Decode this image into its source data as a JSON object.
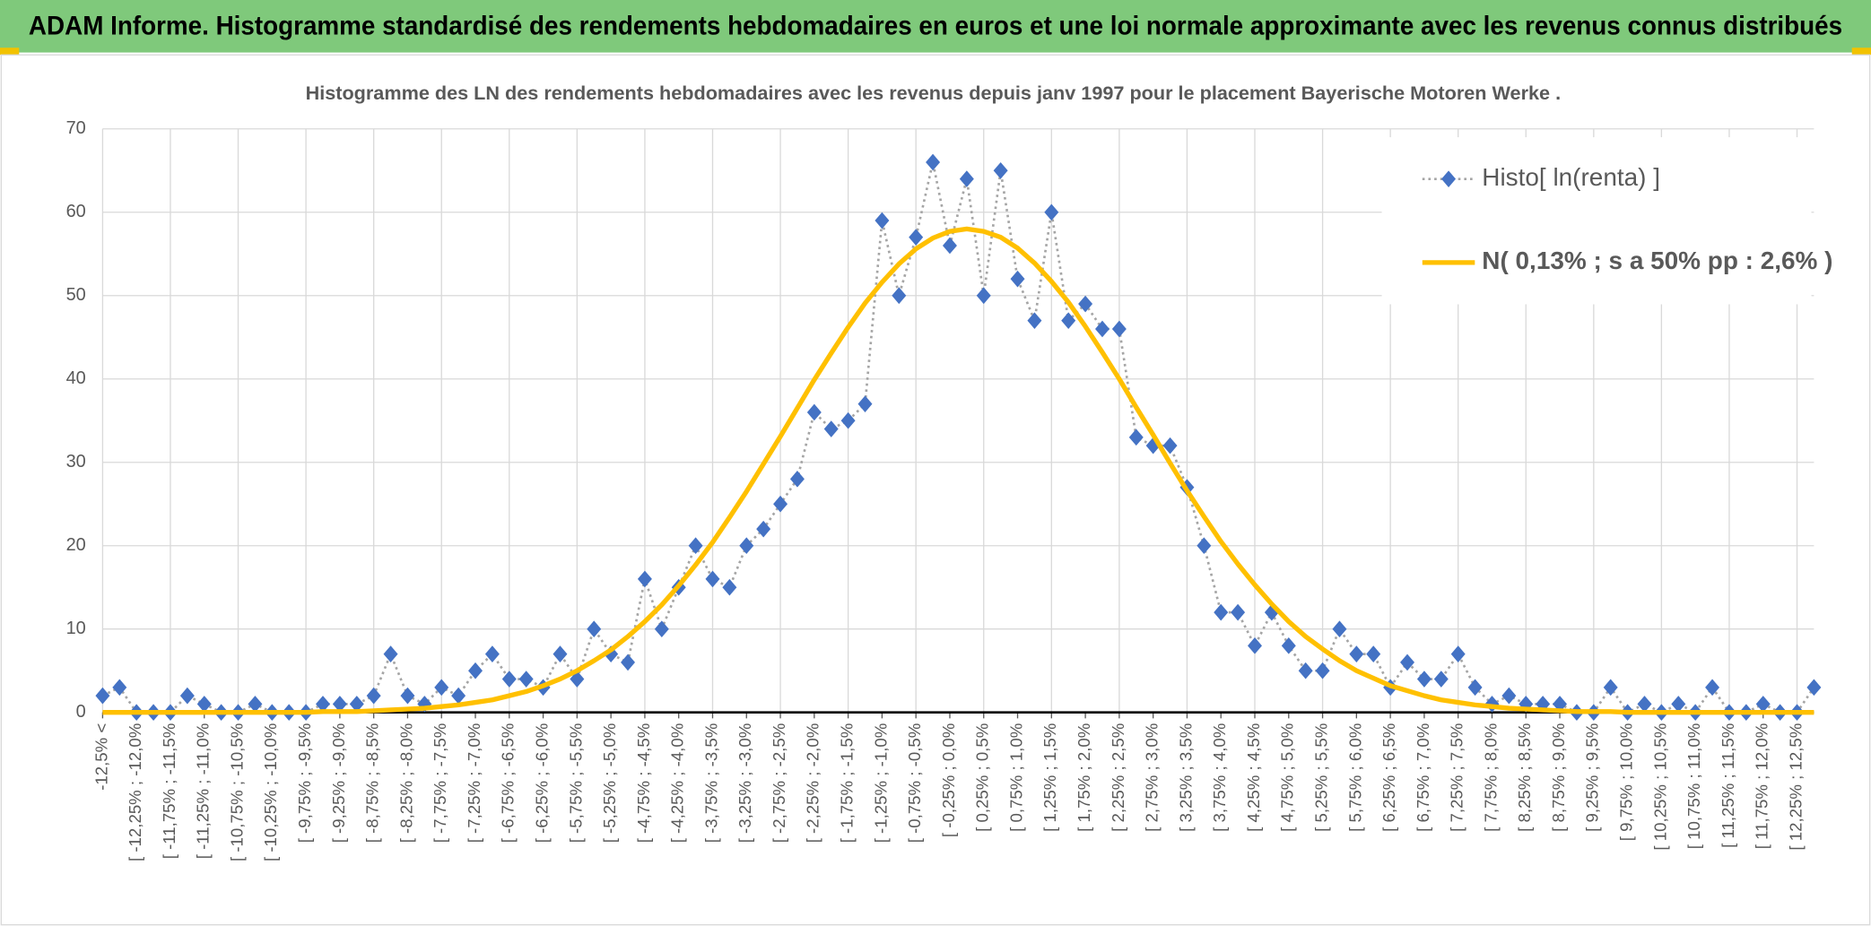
{
  "chart_data": {
    "type": "line",
    "title": "ADAM Informe. Histogramme standardisé des rendements hebdomadaires en euros et une loi normale approximante avec les revenus connus distribués",
    "subtitle": "Histogramme des LN des rendements hebdomadaires avec les revenus depuis janv 1997 pour le placement Bayerische Motoren Werke .",
    "categories": [
      "-12,5% <",
      null,
      "[ -12,25% ; -12,0%",
      null,
      "[ -11,75% ; -11,5%",
      null,
      "[ -11,25% ; -11,0%",
      null,
      "[ -10,75% ; -10,5%",
      null,
      "[ -10,25% ; -10,0%",
      null,
      "[ -9,75% ; -9,5%",
      null,
      "[ -9,25% ; -9,0%",
      null,
      "[ -8,75% ; -8,5%",
      null,
      "[ -8,25% ; -8,0%",
      null,
      "[ -7,75% ; -7,5%",
      null,
      "[ -7,25% ; -7,0%",
      null,
      "[ -6,75% ; -6,5%",
      null,
      "[ -6,25% ; -6,0%",
      null,
      "[ -5,75% ; -5,5%",
      null,
      "[ -5,25% ; -5,0%",
      null,
      "[ -4,75% ; -4,5%",
      null,
      "[ -4,25% ; -4,0%",
      null,
      "[ -3,75% ; -3,5%",
      null,
      "[ -3,25% ; -3,0%",
      null,
      "[ -2,75% ; -2,5%",
      null,
      "[ -2,25% ; -2,0%",
      null,
      "[ -1,75% ; -1,5%",
      null,
      "[ -1,25% ; -1,0%",
      null,
      "[ -0,75% ; -0,5%",
      null,
      "[ -0,25% ; 0,0%",
      null,
      "[ 0,25% ; 0,5%",
      null,
      "[ 0,75% ; 1,0%",
      null,
      "[ 1,25% ; 1,5%",
      null,
      "[ 1,75% ; 2,0%",
      null,
      "[ 2,25% ; 2,5%",
      null,
      "[ 2,75% ; 3,0%",
      null,
      "[ 3,25% ; 3,5%",
      null,
      "[ 3,75% ; 4,0%",
      null,
      "[ 4,25% ; 4,5%",
      null,
      "[ 4,75% ; 5,0%",
      null,
      "[ 5,25% ; 5,5%",
      null,
      "[ 5,75% ; 6,0%",
      null,
      "[ 6,25% ; 6,5%",
      null,
      "[ 6,75% ; 7,0%",
      null,
      "[ 7,25% ; 7,5%",
      null,
      "[ 7,75% ; 8,0%",
      null,
      "[ 8,25% ; 8,5%",
      null,
      "[ 8,75% ; 9,0%",
      null,
      "[ 9,25% ; 9,5%",
      null,
      "[ 9,75% ; 10,0%",
      null,
      "[ 10,25% ; 10,5%",
      null,
      "[ 10,75% ; 11,0%",
      null,
      "[ 11,25% ; 11,5%",
      null,
      "[ 11,75% ; 12,0%",
      null,
      "[ 12,25% ; 12,5%",
      null
    ],
    "series": [
      {
        "name": "Histo[ ln(renta) ]",
        "color": "#4472c4",
        "line_color": "#a5a5a5",
        "line_style": "dotted",
        "marker": "diamond",
        "values": [
          2,
          3,
          0,
          0,
          0,
          2,
          1,
          0,
          0,
          1,
          0,
          0,
          0,
          1,
          1,
          1,
          2,
          7,
          2,
          1,
          3,
          2,
          5,
          7,
          4,
          4,
          3,
          7,
          4,
          10,
          7,
          6,
          16,
          10,
          15,
          20,
          16,
          15,
          20,
          22,
          25,
          28,
          36,
          34,
          35,
          37,
          59,
          50,
          57,
          66,
          56,
          64,
          50,
          65,
          52,
          47,
          60,
          47,
          49,
          46,
          46,
          33,
          32,
          32,
          27,
          20,
          12,
          12,
          8,
          12,
          8,
          5,
          5,
          10,
          7,
          7,
          3,
          6,
          4,
          4,
          7,
          3,
          1,
          2,
          1,
          1,
          1,
          0,
          0,
          3,
          0,
          1,
          0,
          1,
          0,
          3,
          0,
          0,
          1,
          0,
          0,
          3
        ]
      },
      {
        "name": "N( 0,13% ; s a 50% pp : 2,6% )",
        "color": "#ffc000",
        "line_style": "solid",
        "marker": "none",
        "values": [
          0,
          0,
          0,
          0,
          0,
          0,
          0,
          0,
          0,
          0,
          0,
          0,
          0,
          0.1,
          0.1,
          0.1,
          0.2,
          0.3,
          0.4,
          0.5,
          0.7,
          0.9,
          1.2,
          1.5,
          2.0,
          2.5,
          3.2,
          4.0,
          5.0,
          6.2,
          7.5,
          9.1,
          10.9,
          12.9,
          15.2,
          17.7,
          20.4,
          23.4,
          26.5,
          29.8,
          33.1,
          36.5,
          39.9,
          43.1,
          46.2,
          49.1,
          51.6,
          53.8,
          55.6,
          56.9,
          57.7,
          58.0,
          57.7,
          57.0,
          55.7,
          53.9,
          51.7,
          49.2,
          46.3,
          43.2,
          40.0,
          36.6,
          33.3,
          29.9,
          26.6,
          23.5,
          20.5,
          17.8,
          15.3,
          13.0,
          10.9,
          9.1,
          7.6,
          6.2,
          5.0,
          4.1,
          3.2,
          2.6,
          2.0,
          1.5,
          1.2,
          0.9,
          0.7,
          0.5,
          0.4,
          0.3,
          0.2,
          0.1,
          0.1,
          0.1,
          0,
          0,
          0,
          0,
          0,
          0,
          0,
          0,
          0,
          0,
          0,
          0
        ]
      }
    ],
    "ylim": [
      0,
      70
    ],
    "yticks": [
      0,
      10,
      20,
      30,
      40,
      50,
      60,
      70
    ],
    "grid": true,
    "legend": "top-right"
  }
}
